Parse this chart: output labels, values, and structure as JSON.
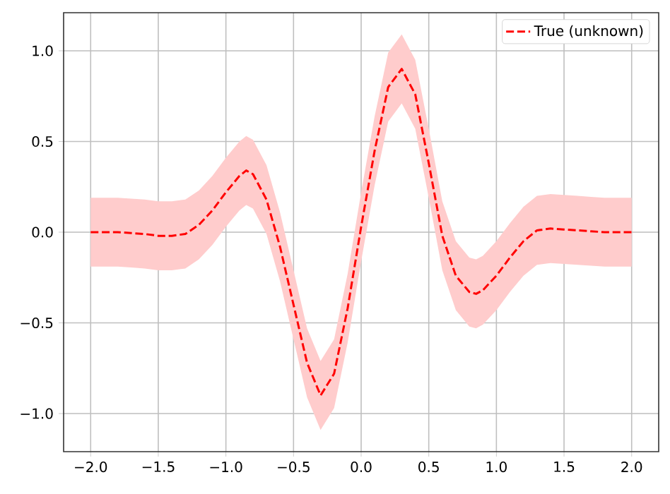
{
  "chart_data": {
    "type": "line",
    "xlim": [
      -2.2,
      2.2
    ],
    "ylim": [
      -1.21,
      1.21
    ],
    "xticks": [
      {
        "value": -2,
        "label": "−2.0"
      },
      {
        "value": -1.5,
        "label": "−1.5"
      },
      {
        "value": -1,
        "label": "−1.0"
      },
      {
        "value": -0.5,
        "label": "−0.5"
      },
      {
        "value": 0,
        "label": "0.0"
      },
      {
        "value": 0.5,
        "label": "0.5"
      },
      {
        "value": 1,
        "label": "1.0"
      },
      {
        "value": 1.5,
        "label": "1.5"
      },
      {
        "value": 2,
        "label": "2.0"
      }
    ],
    "yticks": [
      {
        "value": -1,
        "label": "−1.0"
      },
      {
        "value": -0.5,
        "label": "−0.5"
      },
      {
        "value": 0,
        "label": "0.0"
      },
      {
        "value": 0.5,
        "label": "0.5"
      },
      {
        "value": 1,
        "label": "1.0"
      }
    ],
    "grid": true,
    "legend": "top right",
    "marker": "none",
    "line_style": "dashed",
    "series": [
      {
        "name": "True (unknown)",
        "color": "#ff0000",
        "x": [
          -2.0,
          -1.9,
          -1.8,
          -1.7,
          -1.6,
          -1.5,
          -1.4,
          -1.3,
          -1.2,
          -1.1,
          -1.0,
          -0.9,
          -0.85,
          -0.8,
          -0.7,
          -0.6,
          -0.5,
          -0.4,
          -0.3,
          -0.2,
          -0.1,
          0.0,
          0.1,
          0.2,
          0.3,
          0.4,
          0.5,
          0.6,
          0.7,
          0.8,
          0.85,
          0.9,
          1.0,
          1.1,
          1.2,
          1.3,
          1.4,
          1.5,
          1.6,
          1.7,
          1.8,
          1.9,
          2.0
        ],
        "values": [
          0,
          0,
          0,
          -0.005,
          -0.01,
          -0.02,
          -0.02,
          -0.01,
          0.04,
          0.12,
          0.22,
          0.31,
          0.34,
          0.32,
          0.18,
          -0.08,
          -0.4,
          -0.72,
          -0.9,
          -0.78,
          -0.42,
          0.03,
          0.45,
          0.8,
          0.9,
          0.76,
          0.38,
          -0.02,
          -0.24,
          -0.33,
          -0.34,
          -0.32,
          -0.24,
          -0.14,
          -0.05,
          0.01,
          0.02,
          0.015,
          0.01,
          0.005,
          0,
          0,
          0
        ],
        "lower": [
          -0.19,
          -0.19,
          -0.19,
          -0.195,
          -0.2,
          -0.21,
          -0.21,
          -0.2,
          -0.15,
          -0.07,
          0.03,
          0.12,
          0.15,
          0.13,
          -0.01,
          -0.27,
          -0.59,
          -0.91,
          -1.09,
          -0.97,
          -0.61,
          -0.16,
          0.26,
          0.61,
          0.71,
          0.57,
          0.19,
          -0.21,
          -0.43,
          -0.52,
          -0.53,
          -0.51,
          -0.43,
          -0.33,
          -0.24,
          -0.18,
          -0.17,
          -0.175,
          -0.18,
          -0.185,
          -0.19,
          -0.19,
          -0.19
        ],
        "upper": [
          0.19,
          0.19,
          0.19,
          0.185,
          0.18,
          0.17,
          0.17,
          0.18,
          0.23,
          0.31,
          0.41,
          0.5,
          0.53,
          0.51,
          0.37,
          0.11,
          -0.21,
          -0.53,
          -0.71,
          -0.59,
          -0.23,
          0.22,
          0.64,
          0.99,
          1.09,
          0.95,
          0.57,
          0.17,
          -0.05,
          -0.14,
          -0.15,
          -0.13,
          -0.05,
          0.05,
          0.14,
          0.2,
          0.21,
          0.205,
          0.2,
          0.195,
          0.19,
          0.19,
          0.19
        ]
      }
    ]
  }
}
